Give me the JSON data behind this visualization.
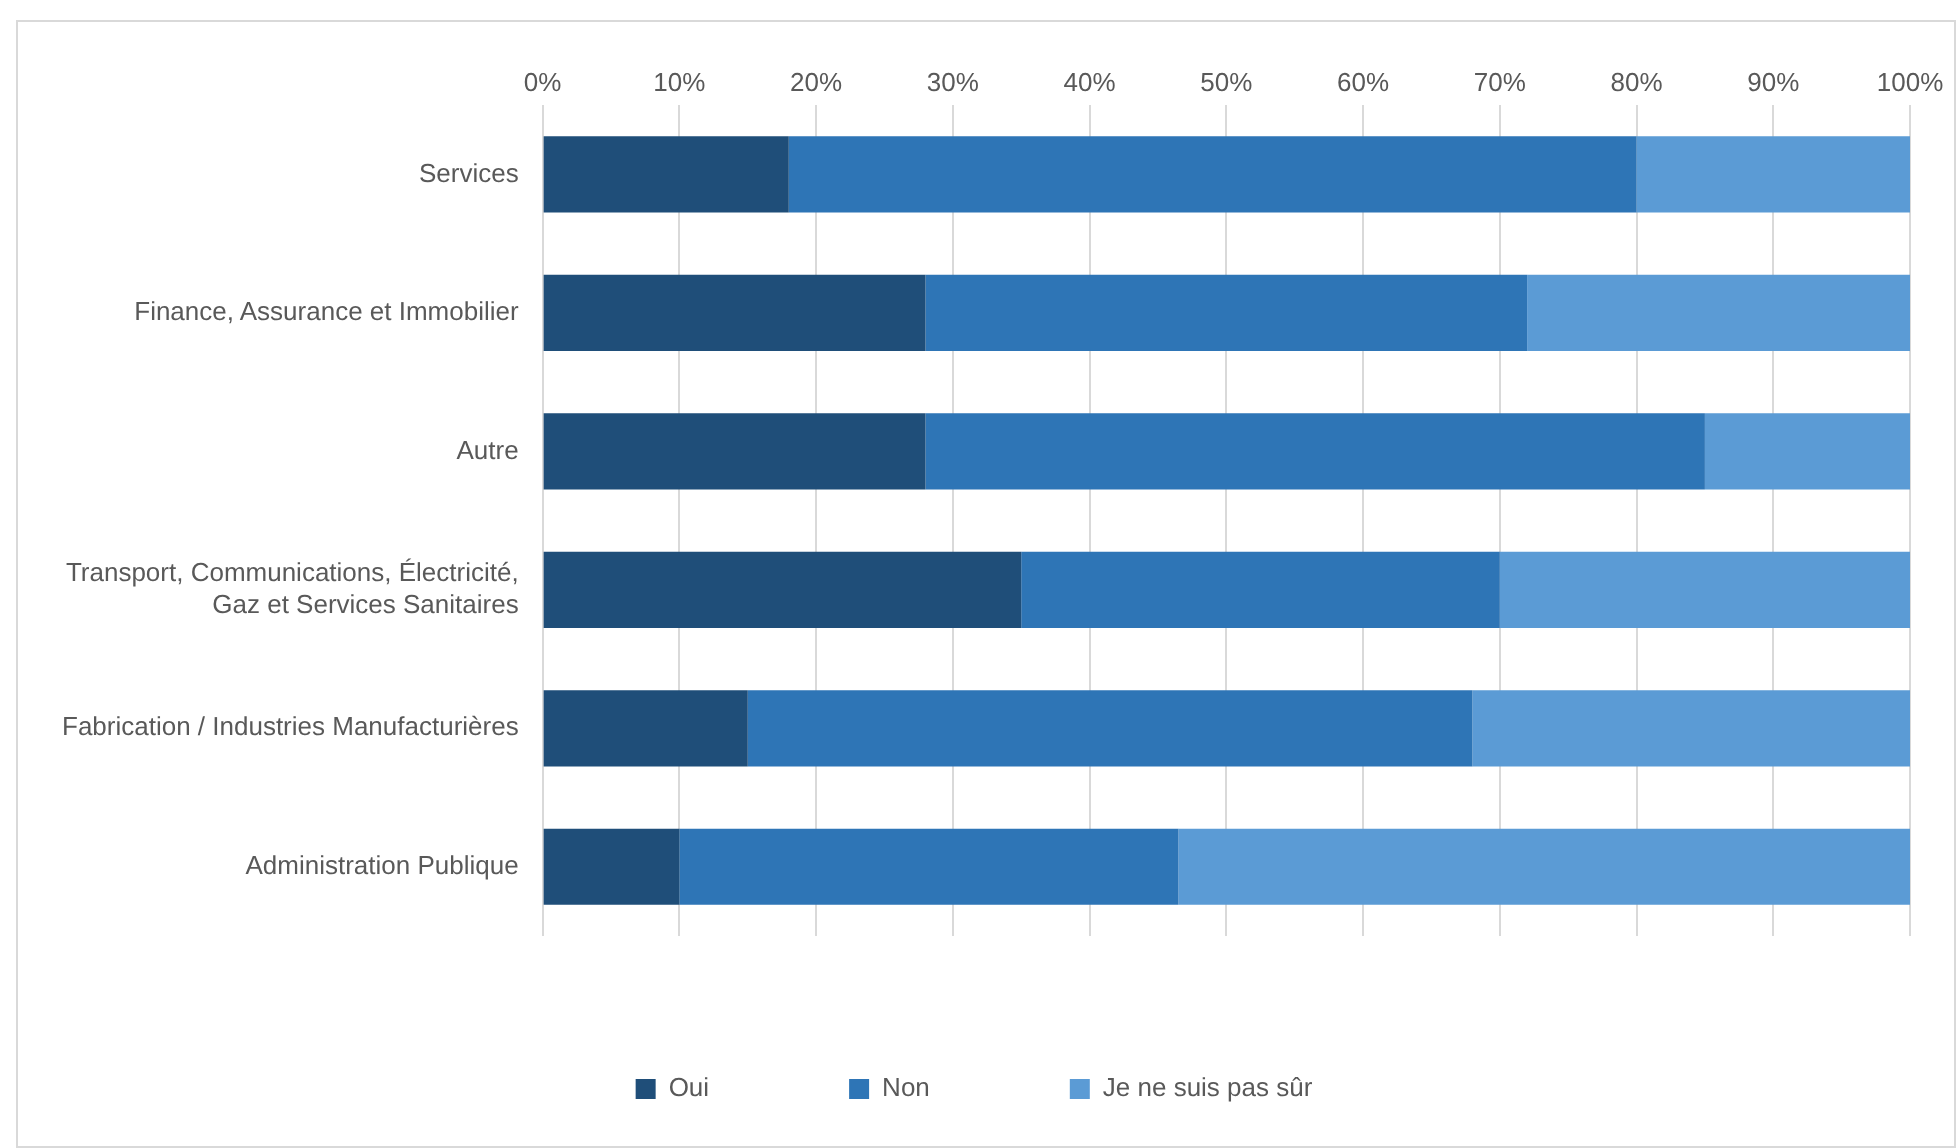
{
  "chart_data": {
    "type": "bar",
    "orientation": "horizontal",
    "stacked": true,
    "categories": [
      "Services",
      "Finance, Assurance et Immobilier",
      "Autre",
      "Transport, Communications, Électricité, Gaz et Services Sanitaires",
      "Fabrication / Industries Manufacturières",
      "Administration Publique"
    ],
    "series": [
      {
        "name": "Oui",
        "color": "#1f4e79",
        "values": [
          18,
          28,
          28,
          35,
          15,
          10
        ]
      },
      {
        "name": "Non",
        "color": "#2e75b6",
        "values": [
          62,
          44,
          57,
          35,
          53,
          36.5
        ]
      },
      {
        "name": "Je ne suis pas sûr",
        "color": "#5b9bd5",
        "values": [
          20,
          28,
          15,
          30,
          32,
          53.5
        ]
      }
    ],
    "xlim": [
      0,
      100
    ],
    "xticks": [
      {
        "value": 0,
        "label": "0%"
      },
      {
        "value": 10,
        "label": "10%"
      },
      {
        "value": 20,
        "label": "20%"
      },
      {
        "value": 30,
        "label": "30%"
      },
      {
        "value": 40,
        "label": "40%"
      },
      {
        "value": 50,
        "label": "50%"
      },
      {
        "value": 60,
        "label": "60%"
      },
      {
        "value": 70,
        "label": "70%"
      },
      {
        "value": 80,
        "label": "80%"
      },
      {
        "value": 90,
        "label": "90%"
      },
      {
        "value": 100,
        "label": "100%"
      }
    ],
    "grid": "x",
    "legend": "bottom"
  }
}
